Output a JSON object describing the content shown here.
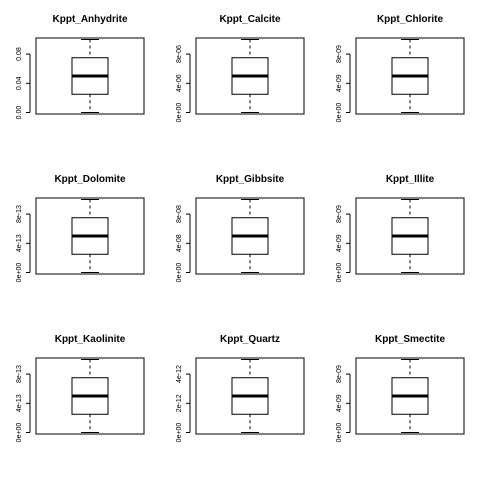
{
  "chart_data": [
    {
      "type": "boxplot",
      "title": "Kppt_Anhydrite",
      "yticks": [
        {
          "v": 0,
          "label": "0.00"
        },
        {
          "v": 0.04,
          "label": "0.04"
        },
        {
          "v": 0.08,
          "label": "0.08"
        }
      ],
      "ylim": [
        -0.002,
        0.102
      ],
      "box": {
        "min": 0.0,
        "q1": 0.025,
        "median": 0.05,
        "q3": 0.075,
        "max": 0.1
      }
    },
    {
      "type": "boxplot",
      "title": "Kppt_Calcite",
      "yticks": [
        {
          "v": 0,
          "label": "0e+00"
        },
        {
          "v": 4e-06,
          "label": "4e-06"
        },
        {
          "v": 8e-06,
          "label": "8e-06"
        }
      ],
      "ylim": [
        -2e-07,
        1.02e-05
      ],
      "box": {
        "min": 0.0,
        "q1": 2.5e-06,
        "median": 5e-06,
        "q3": 7.5e-06,
        "max": 1e-05
      }
    },
    {
      "type": "boxplot",
      "title": "Kppt_Chlorite",
      "yticks": [
        {
          "v": 0,
          "label": "0e+00"
        },
        {
          "v": 4e-09,
          "label": "4e-09"
        },
        {
          "v": 8e-09,
          "label": "8e-09"
        }
      ],
      "ylim": [
        -2e-10,
        1.02e-08
      ],
      "box": {
        "min": 0.0,
        "q1": 2.5e-09,
        "median": 5e-09,
        "q3": 7.5e-09,
        "max": 1e-08
      }
    },
    {
      "type": "boxplot",
      "title": "Kppt_Dolomite",
      "yticks": [
        {
          "v": 0,
          "label": "0e+00"
        },
        {
          "v": 4e-13,
          "label": "4e-13"
        },
        {
          "v": 8e-13,
          "label": "8e-13"
        }
      ],
      "ylim": [
        -2e-14,
        1.02e-12
      ],
      "box": {
        "min": 0.0,
        "q1": 2.5e-13,
        "median": 5e-13,
        "q3": 7.5e-13,
        "max": 1e-12
      }
    },
    {
      "type": "boxplot",
      "title": "Kppt_Gibbsite",
      "yticks": [
        {
          "v": 0,
          "label": "0e+00"
        },
        {
          "v": 4e-08,
          "label": "4e-08"
        },
        {
          "v": 8e-08,
          "label": "8e-08"
        }
      ],
      "ylim": [
        -2e-09,
        1.02e-07
      ],
      "box": {
        "min": 0.0,
        "q1": 2.5e-08,
        "median": 5e-08,
        "q3": 7.5e-08,
        "max": 1e-07
      }
    },
    {
      "type": "boxplot",
      "title": "Kppt_Illite",
      "yticks": [
        {
          "v": 0,
          "label": "0e+00"
        },
        {
          "v": 4e-09,
          "label": "4e-09"
        },
        {
          "v": 8e-09,
          "label": "8e-09"
        }
      ],
      "ylim": [
        -2e-10,
        1.02e-08
      ],
      "box": {
        "min": 0.0,
        "q1": 2.5e-09,
        "median": 5e-09,
        "q3": 7.5e-09,
        "max": 1e-08
      }
    },
    {
      "type": "boxplot",
      "title": "Kppt_Kaolinite",
      "yticks": [
        {
          "v": 0,
          "label": "0e+00"
        },
        {
          "v": 4e-13,
          "label": "4e-13"
        },
        {
          "v": 8e-13,
          "label": "8e-13"
        }
      ],
      "ylim": [
        -2e-14,
        1.02e-12
      ],
      "box": {
        "min": 0.0,
        "q1": 2.5e-13,
        "median": 5e-13,
        "q3": 7.5e-13,
        "max": 1e-12
      }
    },
    {
      "type": "boxplot",
      "title": "Kppt_Quartz",
      "yticks": [
        {
          "v": 0,
          "label": "0e+00"
        },
        {
          "v": 2e-12,
          "label": "2e-12"
        },
        {
          "v": 4e-12,
          "label": "4e-12"
        }
      ],
      "ylim": [
        -1e-13,
        5.1e-12
      ],
      "box": {
        "min": 0.0,
        "q1": 1.25e-12,
        "median": 2.5e-12,
        "q3": 3.75e-12,
        "max": 5e-12
      }
    },
    {
      "type": "boxplot",
      "title": "Kppt_Smectite",
      "yticks": [
        {
          "v": 0,
          "label": "0e+00"
        },
        {
          "v": 4e-09,
          "label": "4e-09"
        },
        {
          "v": 8e-09,
          "label": "8e-09"
        }
      ],
      "ylim": [
        -2e-10,
        1.02e-08
      ],
      "box": {
        "min": 0.0,
        "q1": 2.5e-09,
        "median": 5e-09,
        "q3": 7.5e-09,
        "max": 1e-08
      }
    }
  ]
}
